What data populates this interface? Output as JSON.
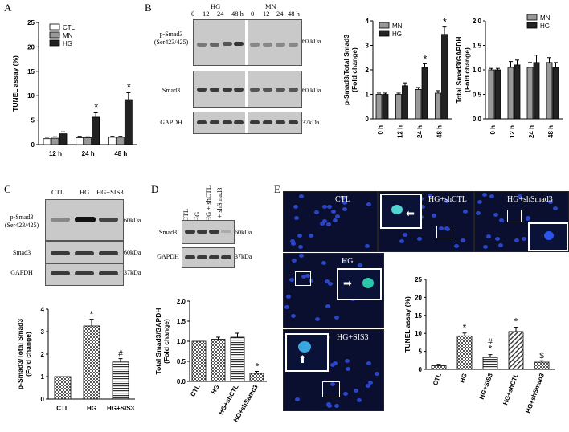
{
  "panels": {
    "A": "A",
    "B": "B",
    "C": "C",
    "D": "D",
    "E": "E"
  },
  "panelA": {
    "legend": [
      "CTL",
      "MN",
      "HG"
    ],
    "ylabel": "TUNEL assay (%)",
    "xticks": [
      "12 h",
      "24 h",
      "48 h"
    ],
    "yticks": [
      "0",
      "5",
      "10",
      "15",
      "20",
      "25"
    ],
    "star": "*"
  },
  "panelB_blot": {
    "hg_label": "HG",
    "mn_label": "MN",
    "times": [
      "0",
      "12",
      "24",
      "48 h"
    ],
    "times_mn": [
      "0",
      "12",
      "24",
      "48 h"
    ],
    "rows": [
      {
        "label": "p-Smad3\n(Ser423/425)",
        "kda": "60 kDa"
      },
      {
        "label": "Smad3",
        "kda": "60 kDa"
      },
      {
        "label": "GAPDH",
        "kda": "37kDa"
      }
    ]
  },
  "panelB_chart1": {
    "legend": [
      "MN",
      "HG"
    ],
    "ylabel": "p-Smad3/Total Smad3\n(Fold change)",
    "xticks": [
      "0 h",
      "12 h",
      "24 h",
      "48 h"
    ],
    "yticks": [
      "0",
      "1",
      "2",
      "3",
      "4"
    ],
    "star": "*"
  },
  "panelB_chart2": {
    "legend": [
      "MN",
      "HG"
    ],
    "ylabel": "Total Smad3/GAPDH\n(Fold change)",
    "xticks": [
      "0 h",
      "12 h",
      "24 h",
      "48 h"
    ],
    "yticks": [
      "0.0",
      "0.5",
      "1.0",
      "1.5",
      "2.0"
    ]
  },
  "panelC_blot": {
    "lanes": [
      "CTL",
      "HG",
      "HG+SIS3"
    ],
    "rows": [
      {
        "label": "p-Smad3\n(Ser423/425)",
        "kda": "60kDa"
      },
      {
        "label": "Smad3",
        "kda": "60kDa"
      },
      {
        "label": "GAPDH",
        "kda": "37kDa"
      }
    ]
  },
  "panelC_chart": {
    "ylabel": "p-Smad3/Total Smad3\n(Fold change)",
    "xticks": [
      "CTL",
      "HG",
      "HG+SIS3"
    ],
    "yticks": [
      "0",
      "1",
      "2",
      "3",
      "4"
    ],
    "star": "*",
    "hash": "#"
  },
  "panelD_blot": {
    "lanes": [
      "CTL",
      "HG",
      "HG + shCTL",
      "HG + shSmad3"
    ],
    "rows": [
      {
        "label": "Smad3",
        "kda": "60kDa"
      },
      {
        "label": "GAPDH",
        "kda": "37kDa"
      }
    ]
  },
  "panelD_chart": {
    "ylabel": "Total Smad3/GAPDH\n(Fold change)",
    "xticks": [
      "CTL",
      "HG",
      "HG+shCTL",
      "HG+shSamd3"
    ],
    "yticks": [
      "0.0",
      "0.5",
      "1.0",
      "1.5",
      "2.0"
    ],
    "star": "*"
  },
  "panelE_images": {
    "labels": [
      "CTL",
      "HG+shCTL",
      "HG+shSmad3",
      "HG",
      "HG+SIS3"
    ]
  },
  "panelE_chart": {
    "ylabel": "TUNEL assay (%)",
    "xticks": [
      "CTL",
      "HG",
      "HG+SIS3",
      "HG+shCTL",
      "HG+shSmad3"
    ],
    "yticks": [
      "0",
      "5",
      "10",
      "15",
      "20",
      "25"
    ],
    "marks": [
      "",
      "*",
      "#\n*",
      "*",
      "$"
    ]
  },
  "chart_data": [
    {
      "type": "bar",
      "panel": "A",
      "categories": [
        "12 h",
        "24 h",
        "48 h"
      ],
      "series": [
        {
          "name": "CTL",
          "values": [
            1.2,
            1.4,
            1.5
          ],
          "errors": [
            0.3,
            0.3,
            0.2
          ]
        },
        {
          "name": "MN",
          "values": [
            1.3,
            1.4,
            1.5
          ],
          "errors": [
            0.3,
            0.2,
            0.2
          ]
        },
        {
          "name": "HG",
          "values": [
            2.2,
            5.6,
            9.2
          ],
          "errors": [
            0.4,
            0.9,
            1.4
          ]
        }
      ],
      "ylabel": "TUNEL assay (%)",
      "ylim": [
        0,
        25
      ],
      "significance": [
        "",
        "*",
        "*"
      ]
    },
    {
      "type": "bar",
      "panel": "B-left",
      "categories": [
        "0 h",
        "12 h",
        "24 h",
        "48 h"
      ],
      "series": [
        {
          "name": "MN",
          "values": [
            1.0,
            1.0,
            1.2,
            1.05
          ],
          "errors": [
            0.05,
            0.05,
            0.08,
            0.1
          ]
        },
        {
          "name": "HG",
          "values": [
            1.0,
            1.35,
            2.1,
            3.45
          ],
          "errors": [
            0.05,
            0.12,
            0.15,
            0.3
          ]
        }
      ],
      "ylabel": "p-Smad3/Total Smad3 (Fold change)",
      "ylim": [
        0,
        4
      ],
      "significance": [
        "",
        "",
        "*",
        "*"
      ]
    },
    {
      "type": "bar",
      "panel": "B-right",
      "categories": [
        "0 h",
        "12 h",
        "24 h",
        "48 h"
      ],
      "series": [
        {
          "name": "MN",
          "values": [
            1.0,
            1.05,
            1.05,
            1.15
          ],
          "errors": [
            0.03,
            0.12,
            0.1,
            0.1
          ]
        },
        {
          "name": "HG",
          "values": [
            1.0,
            1.1,
            1.15,
            1.05
          ],
          "errors": [
            0.03,
            0.1,
            0.15,
            0.1
          ]
        }
      ],
      "ylabel": "Total Smad3/GAPDH (Fold change)",
      "ylim": [
        0,
        2
      ]
    },
    {
      "type": "bar",
      "panel": "C",
      "categories": [
        "CTL",
        "HG",
        "HG+SIS3"
      ],
      "values": [
        1.0,
        3.25,
        1.65
      ],
      "errors": [
        0,
        0.3,
        0.15
      ],
      "ylabel": "p-Smad3/Total Smad3 (Fold change)",
      "ylim": [
        0,
        4
      ],
      "significance": [
        "",
        "*",
        "#"
      ]
    },
    {
      "type": "bar",
      "panel": "D",
      "categories": [
        "CTL",
        "HG",
        "HG+shCTL",
        "HG+shSamd3"
      ],
      "values": [
        1.0,
        1.05,
        1.1,
        0.2
      ],
      "errors": [
        0,
        0.05,
        0.1,
        0.05
      ],
      "ylabel": "Total Smad3/GAPDH (Fold change)",
      "ylim": [
        0,
        2
      ],
      "significance": [
        "",
        "",
        "",
        "*"
      ]
    },
    {
      "type": "bar",
      "panel": "E",
      "categories": [
        "CTL",
        "HG",
        "HG+SIS3",
        "HG+shCTL",
        "HG+shSmad3"
      ],
      "values": [
        1.0,
        9.3,
        3.3,
        10.5,
        2.0
      ],
      "errors": [
        0.4,
        0.8,
        0.8,
        1.2,
        0.4
      ],
      "ylabel": "TUNEL assay (%)",
      "ylim": [
        0,
        25
      ],
      "significance": [
        "",
        "*",
        "# *",
        "*",
        "$"
      ]
    }
  ]
}
